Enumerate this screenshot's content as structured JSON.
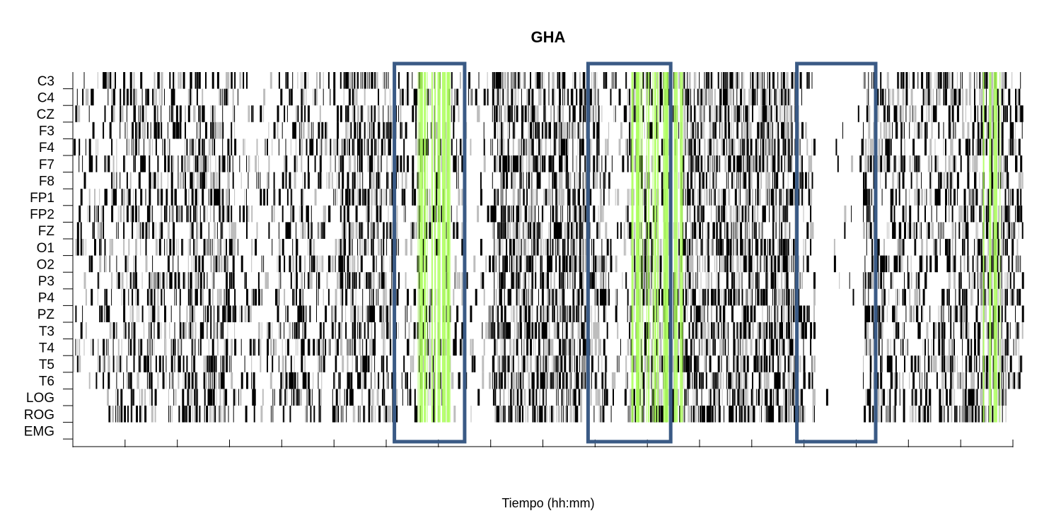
{
  "chart_data": {
    "type": "heatmap",
    "title": "GHA",
    "xlabel": "Tiempo (hh:mm)",
    "ylabel": "",
    "channels": [
      "C3",
      "C4",
      "CZ",
      "F3",
      "F4",
      "F7",
      "F8",
      "FP1",
      "FP2",
      "FZ",
      "O1",
      "O2",
      "P3",
      "P4",
      "PZ",
      "T3",
      "T4",
      "T5",
      "T6",
      "LOG",
      "ROG",
      "EMG"
    ],
    "x_ticks_count": 19,
    "xlim": [
      0,
      100
    ],
    "event_colors": {
      "normal": "#000000",
      "faint": "#bdbdbd",
      "highlight": "#adff5c"
    },
    "box_color": "#3a5a85",
    "highlight_regions": [
      [
        36.1,
        39.9
      ],
      [
        58.6,
        64.1
      ],
      [
        95.8,
        97.7
      ]
    ],
    "boxes": [
      [
        33.8,
        41.2
      ],
      [
        54.2,
        62.9
      ],
      [
        76.2,
        84.5
      ]
    ],
    "activity_density": [
      {
        "start": 0,
        "end": 3,
        "level": 0.25
      },
      {
        "start": 3,
        "end": 12,
        "level": 0.45
      },
      {
        "start": 12,
        "end": 17,
        "level": 0.55
      },
      {
        "start": 17,
        "end": 22,
        "level": 0.2
      },
      {
        "start": 22,
        "end": 28,
        "level": 0.4
      },
      {
        "start": 28,
        "end": 34,
        "level": 0.6
      },
      {
        "start": 34,
        "end": 41,
        "level": 0.35
      },
      {
        "start": 41,
        "end": 44,
        "level": 0.15
      },
      {
        "start": 44,
        "end": 54,
        "level": 0.7
      },
      {
        "start": 54,
        "end": 56,
        "level": 0.55
      },
      {
        "start": 56,
        "end": 58,
        "level": 0.2
      },
      {
        "start": 58,
        "end": 64,
        "level": 0.45
      },
      {
        "start": 64,
        "end": 76,
        "level": 0.7
      },
      {
        "start": 76,
        "end": 78,
        "level": 0.4
      },
      {
        "start": 78,
        "end": 83,
        "level": 0.03
      },
      {
        "start": 83,
        "end": 85,
        "level": 0.5
      },
      {
        "start": 85,
        "end": 92,
        "level": 0.45
      },
      {
        "start": 92,
        "end": 100,
        "level": 0.6
      }
    ],
    "row_extents": {
      "LOG": [
        3.5,
        98.5
      ],
      "ROG": [
        3.5,
        98.5
      ],
      "EMG": [
        0,
        0
      ]
    }
  }
}
